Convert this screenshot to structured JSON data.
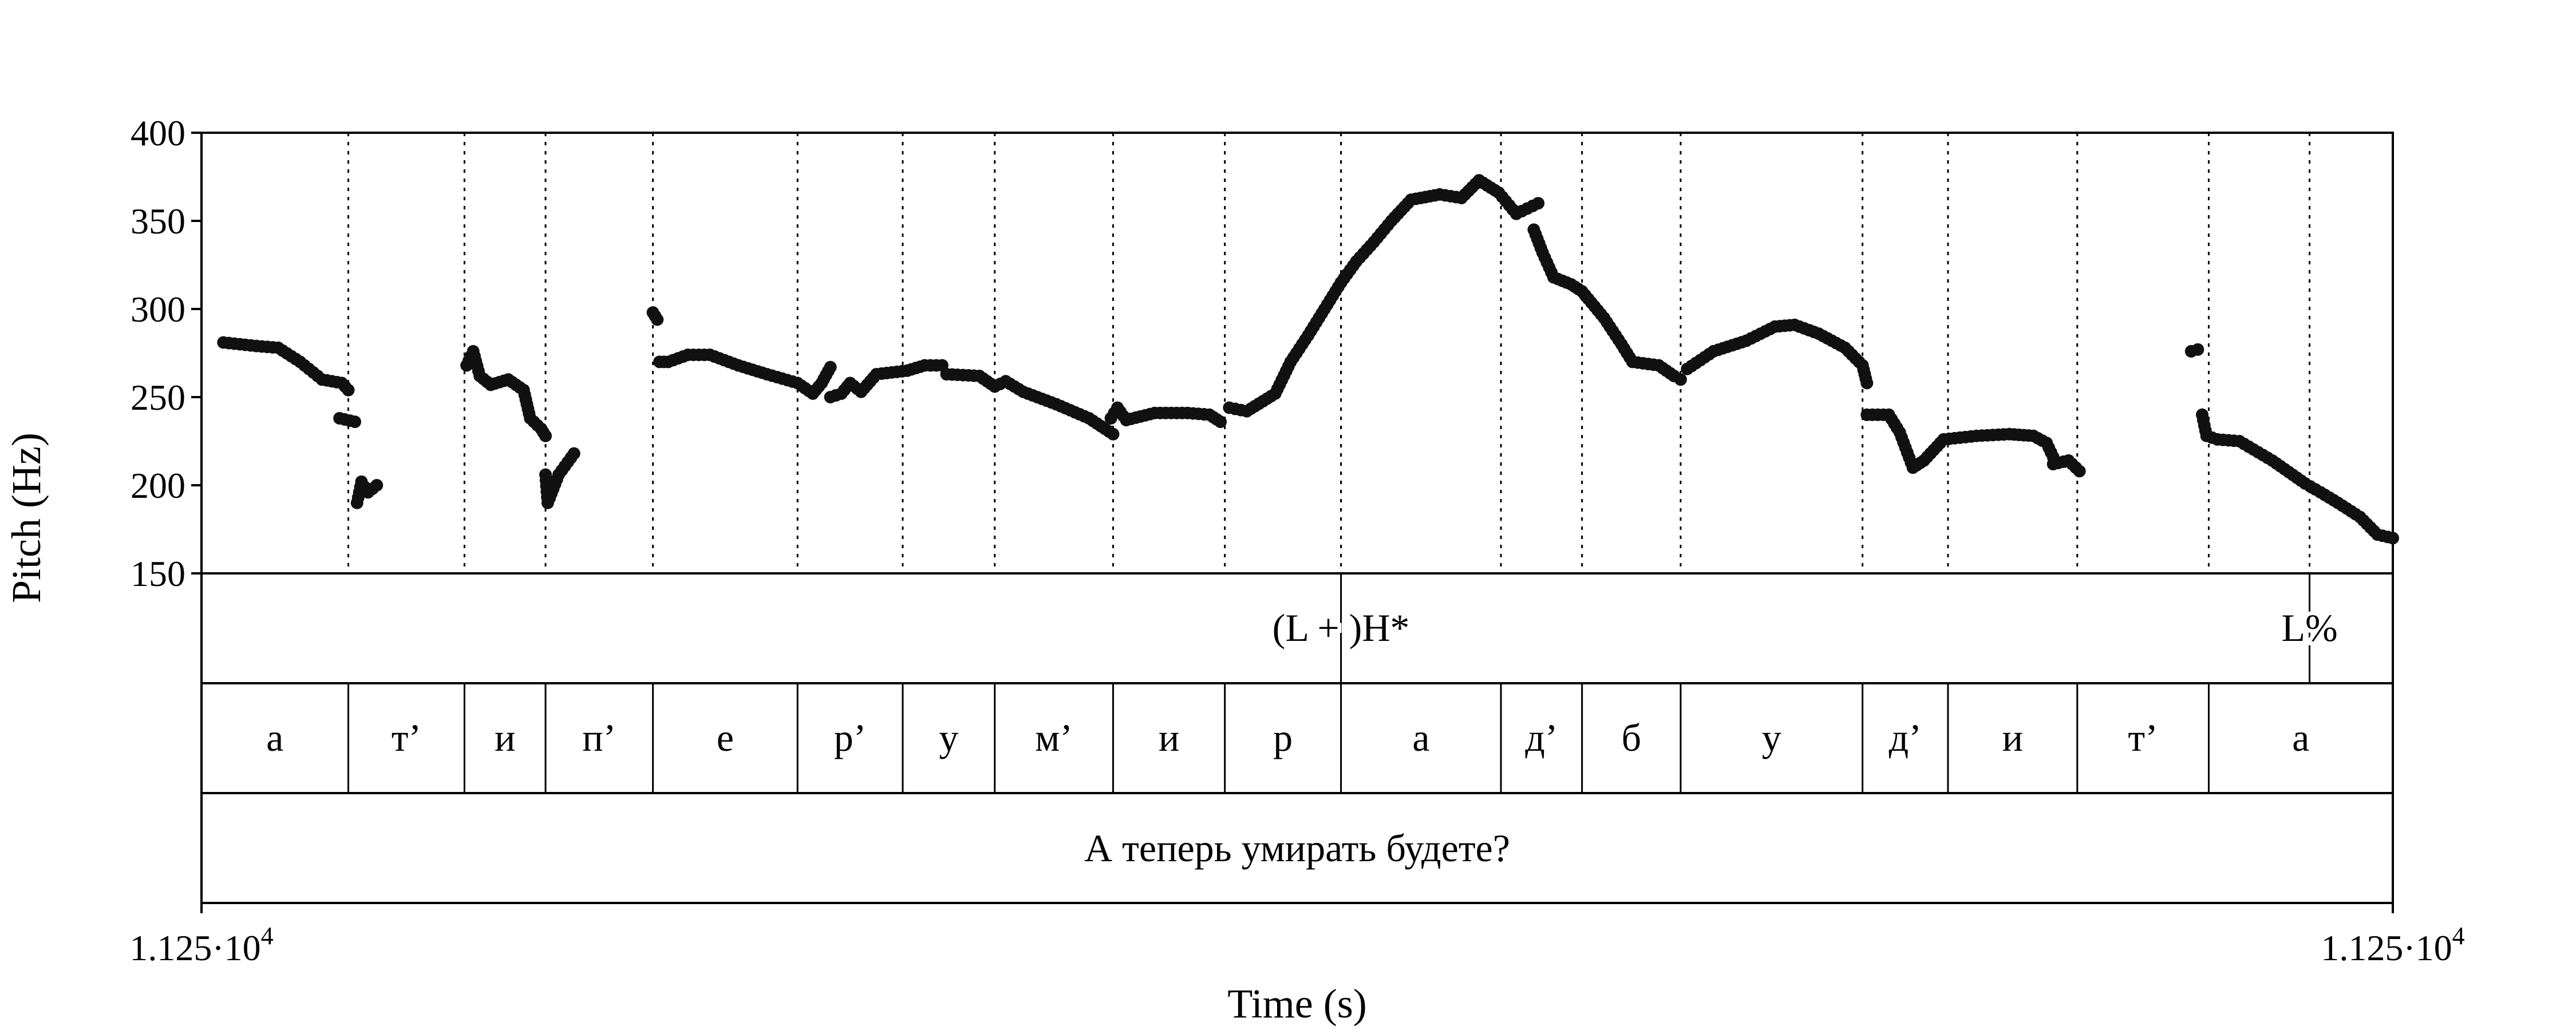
{
  "chart_data": {
    "type": "scatter",
    "xlabel": "Time (s)",
    "ylabel": "Pitch (Hz)",
    "ylim": [
      150,
      400
    ],
    "yticks": [
      "400",
      "350",
      "300",
      "250",
      "200",
      "150"
    ],
    "time_start": {
      "mantissa": "1.125·10",
      "exponent": "4"
    },
    "time_end": {
      "mantissa": "1.125·10",
      "exponent": "4"
    },
    "grid": "dotted vertical lines at segment boundaries",
    "marker_color": "#111111",
    "tones": [
      {
        "label": "(L + )H*",
        "at": 0.52
      },
      {
        "label": "L%",
        "at": 0.962
      }
    ],
    "segments": [
      {
        "label": "а",
        "start": 0.0,
        "end": 0.067
      },
      {
        "label": "т’",
        "start": 0.067,
        "end": 0.12
      },
      {
        "label": "и",
        "start": 0.12,
        "end": 0.157
      },
      {
        "label": "п’",
        "start": 0.157,
        "end": 0.206
      },
      {
        "label": "е",
        "start": 0.206,
        "end": 0.272
      },
      {
        "label": "р’",
        "start": 0.272,
        "end": 0.32
      },
      {
        "label": "у",
        "start": 0.32,
        "end": 0.362
      },
      {
        "label": "м’",
        "start": 0.362,
        "end": 0.416
      },
      {
        "label": "и",
        "start": 0.416,
        "end": 0.467
      },
      {
        "label": "р",
        "start": 0.467,
        "end": 0.52
      },
      {
        "label": "а",
        "start": 0.52,
        "end": 0.593
      },
      {
        "label": "д’",
        "start": 0.593,
        "end": 0.63
      },
      {
        "label": "б",
        "start": 0.63,
        "end": 0.675
      },
      {
        "label": "у",
        "start": 0.675,
        "end": 0.758
      },
      {
        "label": "д’",
        "start": 0.758,
        "end": 0.797
      },
      {
        "label": "и",
        "start": 0.797,
        "end": 0.856
      },
      {
        "label": "т’",
        "start": 0.856,
        "end": 0.916
      },
      {
        "label": "а",
        "start": 0.916,
        "end": 1.0
      }
    ],
    "sentence": "А теперь умирать будете?",
    "pitch_track": [
      [
        [
          0.01,
          281
        ],
        [
          0.025,
          279
        ],
        [
          0.035,
          278
        ],
        [
          0.045,
          270
        ],
        [
          0.055,
          260
        ],
        [
          0.064,
          258
        ],
        [
          0.067,
          254
        ]
      ],
      [
        [
          0.063,
          238
        ],
        [
          0.07,
          236
        ]
      ],
      [
        [
          0.071,
          190
        ],
        [
          0.073,
          202
        ],
        [
          0.076,
          196
        ],
        [
          0.08,
          200
        ]
      ],
      [
        [
          0.121,
          268
        ],
        [
          0.124,
          276
        ],
        [
          0.127,
          262
        ],
        [
          0.132,
          257
        ],
        [
          0.14,
          260
        ],
        [
          0.147,
          254
        ],
        [
          0.15,
          238
        ],
        [
          0.155,
          232
        ],
        [
          0.157,
          228
        ]
      ],
      [
        [
          0.157,
          206
        ],
        [
          0.158,
          190
        ],
        [
          0.163,
          206
        ],
        [
          0.17,
          218
        ]
      ],
      [
        [
          0.206,
          298
        ],
        [
          0.208,
          294
        ]
      ],
      [
        [
          0.209,
          270
        ],
        [
          0.213,
          270
        ],
        [
          0.222,
          274
        ],
        [
          0.232,
          274
        ],
        [
          0.245,
          268
        ],
        [
          0.258,
          263
        ],
        [
          0.272,
          258
        ],
        [
          0.279,
          252
        ],
        [
          0.283,
          258
        ],
        [
          0.287,
          267
        ]
      ],
      [
        [
          0.287,
          250
        ],
        [
          0.292,
          252
        ],
        [
          0.296,
          258
        ],
        [
          0.301,
          253
        ],
        [
          0.308,
          263
        ],
        [
          0.322,
          265
        ],
        [
          0.33,
          268
        ],
        [
          0.338,
          268
        ]
      ],
      [
        [
          0.34,
          263
        ],
        [
          0.355,
          262
        ],
        [
          0.362,
          256
        ],
        [
          0.367,
          259
        ],
        [
          0.375,
          253
        ],
        [
          0.39,
          246
        ],
        [
          0.405,
          238
        ],
        [
          0.416,
          229
        ]
      ],
      [
        [
          0.415,
          238
        ],
        [
          0.418,
          244
        ],
        [
          0.422,
          237
        ],
        [
          0.435,
          241
        ],
        [
          0.45,
          241
        ],
        [
          0.46,
          240
        ],
        [
          0.465,
          236
        ]
      ],
      [
        [
          0.469,
          244
        ],
        [
          0.477,
          242
        ],
        [
          0.49,
          252
        ],
        [
          0.497,
          270
        ],
        [
          0.505,
          285
        ],
        [
          0.515,
          305
        ],
        [
          0.52,
          315
        ]
      ],
      [
        [
          0.52,
          315
        ],
        [
          0.527,
          327
        ],
        [
          0.535,
          338
        ],
        [
          0.543,
          350
        ],
        [
          0.552,
          362
        ],
        [
          0.565,
          365
        ],
        [
          0.575,
          363
        ],
        [
          0.583,
          373
        ],
        [
          0.592,
          366
        ],
        [
          0.6,
          354
        ],
        [
          0.605,
          357
        ],
        [
          0.61,
          360
        ]
      ],
      [
        [
          0.608,
          345
        ],
        [
          0.612,
          332
        ],
        [
          0.617,
          318
        ],
        [
          0.625,
          314
        ],
        [
          0.63,
          310
        ],
        [
          0.64,
          295
        ],
        [
          0.648,
          280
        ],
        [
          0.653,
          270
        ],
        [
          0.665,
          268
        ],
        [
          0.672,
          262
        ],
        [
          0.675,
          260
        ]
      ],
      [
        [
          0.678,
          266
        ],
        [
          0.69,
          276
        ],
        [
          0.705,
          282
        ],
        [
          0.718,
          290
        ],
        [
          0.727,
          291
        ],
        [
          0.738,
          286
        ],
        [
          0.75,
          278
        ],
        [
          0.758,
          268
        ],
        [
          0.76,
          258
        ]
      ],
      [
        [
          0.76,
          240
        ],
        [
          0.77,
          240
        ],
        [
          0.775,
          230
        ],
        [
          0.781,
          210
        ],
        [
          0.786,
          214
        ],
        [
          0.795,
          226
        ],
        [
          0.81,
          228
        ],
        [
          0.825,
          229
        ],
        [
          0.836,
          228
        ],
        [
          0.842,
          224
        ],
        [
          0.845,
          216
        ]
      ],
      [
        [
          0.845,
          212
        ],
        [
          0.852,
          214
        ],
        [
          0.857,
          208
        ]
      ],
      [
        [
          0.908,
          276
        ],
        [
          0.911,
          277
        ]
      ],
      [
        [
          0.913,
          240
        ],
        [
          0.915,
          228
        ],
        [
          0.92,
          226
        ],
        [
          0.93,
          225
        ],
        [
          0.945,
          214
        ],
        [
          0.96,
          201
        ],
        [
          0.967,
          196
        ],
        [
          0.975,
          190
        ],
        [
          0.985,
          182
        ],
        [
          0.993,
          172
        ],
        [
          1.0,
          170
        ]
      ]
    ]
  }
}
